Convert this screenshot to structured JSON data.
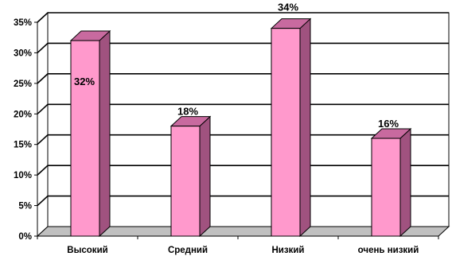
{
  "chart_data": {
    "type": "bar",
    "categories": [
      "Высокий",
      "Средний",
      "Низкий",
      "очень низкий"
    ],
    "values": [
      32,
      18,
      34,
      16
    ],
    "data_labels": [
      "32%",
      "18%",
      "34%",
      "16%"
    ],
    "y_ticks": [
      {
        "value": 0,
        "label": "0%"
      },
      {
        "value": 5,
        "label": "5%"
      },
      {
        "value": 10,
        "label": "10%"
      },
      {
        "value": 15,
        "label": "15%"
      },
      {
        "value": 20,
        "label": "20%"
      },
      {
        "value": 25,
        "label": "25%"
      },
      {
        "value": 30,
        "label": "30%"
      },
      {
        "value": 35,
        "label": "35%"
      }
    ],
    "ylim": [
      0,
      35
    ],
    "title": "",
    "xlabel": "",
    "ylabel": "",
    "grid": true,
    "legend": "none",
    "colors": {
      "bar_front": "#ff99cc",
      "bar_side": "#a0527f",
      "bar_top": "#c86a9f",
      "grid": "#000000",
      "floor": "#c0c0c0"
    }
  }
}
